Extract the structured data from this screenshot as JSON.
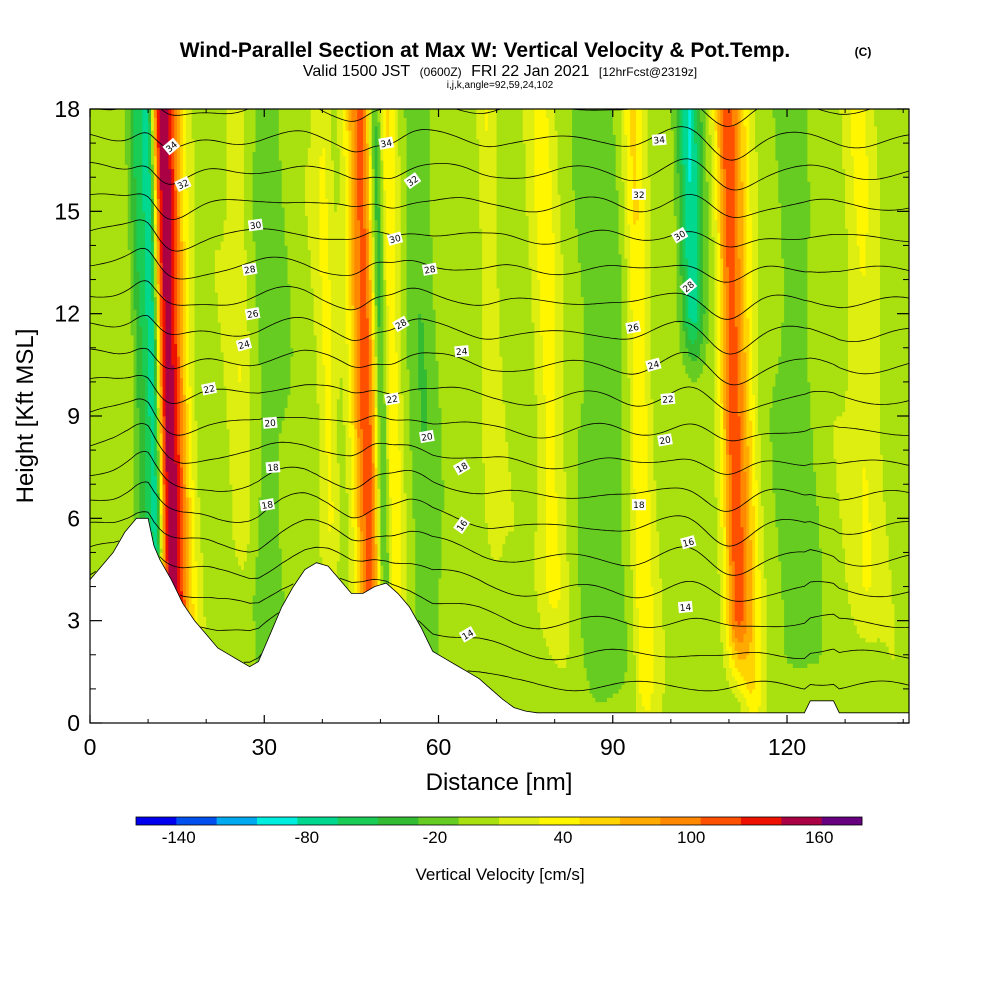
{
  "title": {
    "main": "Wind-Parallel Section at Max W: Vertical Velocity & Pot.Temp.",
    "copyright": "(C)",
    "valid_prefix": "Valid 1500 JST",
    "valid_utc": "(0600Z)",
    "valid_date": "FRI 22 Jan 2021",
    "forecast": "[12hrFcst@2319z]",
    "section_params": "i,j,k,angle=92,59,24,102"
  },
  "chart_data": {
    "type": "heatmap",
    "xlabel": "Distance [nm]",
    "ylabel": "Height [Kft MSL]",
    "xlim": [
      0,
      141
    ],
    "ylim": [
      0,
      18
    ],
    "x_ticks": [
      0,
      30,
      60,
      90,
      120
    ],
    "y_ticks": [
      0,
      3,
      6,
      9,
      12,
      15,
      18
    ],
    "x_minor_step": 10,
    "y_minor_step": 1,
    "x_tick_labels": [
      "0",
      "30",
      "60",
      "90",
      "120"
    ],
    "y_tick_labels": [
      "0",
      "3",
      "6",
      "9",
      "12",
      "15",
      "18"
    ],
    "field": "Vertical Velocity",
    "colorbar": {
      "title": "Vertical Velocity [cm/s]",
      "tick_values": [
        -140,
        -80,
        -20,
        40,
        100,
        160
      ],
      "tick_labels": [
        "-140",
        "-80",
        "-20",
        "40",
        "100",
        "160"
      ],
      "levels": [
        -160,
        -140,
        -120,
        -100,
        -80,
        -60,
        -40,
        -20,
        0,
        20,
        40,
        60,
        80,
        100,
        120,
        140,
        160,
        180
      ],
      "colors": [
        "#0000ee",
        "#0050f0",
        "#00aaf0",
        "#00eee0",
        "#00d890",
        "#19cc55",
        "#33bb33",
        "#66cc22",
        "#a8e010",
        "#ddee10",
        "#fff600",
        "#ffd400",
        "#ffaa00",
        "#ff8800",
        "#ff5000",
        "#ee1100",
        "#aa0044",
        "#66007f"
      ]
    },
    "terrain_kft": [
      [
        0,
        4.2
      ],
      [
        2,
        4.6
      ],
      [
        4,
        5.0
      ],
      [
        6,
        5.6
      ],
      [
        8,
        6.0
      ],
      [
        10,
        6.0
      ],
      [
        11,
        5.2
      ],
      [
        12,
        4.8
      ],
      [
        14,
        4.2
      ],
      [
        16,
        3.5
      ],
      [
        18,
        3.0
      ],
      [
        20,
        2.6
      ],
      [
        22,
        2.2
      ],
      [
        24,
        2.0
      ],
      [
        26,
        1.8
      ],
      [
        27.5,
        1.65
      ],
      [
        29,
        1.8
      ],
      [
        31,
        2.6
      ],
      [
        33,
        3.4
      ],
      [
        35,
        4.0
      ],
      [
        37,
        4.5
      ],
      [
        39,
        4.7
      ],
      [
        41,
        4.6
      ],
      [
        43,
        4.2
      ],
      [
        45,
        3.8
      ],
      [
        47,
        3.8
      ],
      [
        49,
        4.0
      ],
      [
        51,
        4.1
      ],
      [
        53,
        3.8
      ],
      [
        55,
        3.4
      ],
      [
        57,
        2.8
      ],
      [
        59,
        2.1
      ],
      [
        61,
        1.9
      ],
      [
        63,
        1.7
      ],
      [
        65,
        1.5
      ],
      [
        67,
        1.3
      ],
      [
        69,
        1.0
      ],
      [
        71,
        0.7
      ],
      [
        73,
        0.45
      ],
      [
        75,
        0.35
      ],
      [
        77,
        0.3
      ],
      [
        100,
        0.3
      ],
      [
        123,
        0.3
      ],
      [
        124,
        0.65
      ],
      [
        128,
        0.65
      ],
      [
        129,
        0.3
      ],
      [
        141,
        0.3
      ]
    ],
    "updraft_bands": [
      {
        "x": 12.5,
        "w": 3.0,
        "amp": 160,
        "zlo": 3.0
      },
      {
        "x": 46.5,
        "w": 2.5,
        "amp": 115,
        "zlo": 2.0
      },
      {
        "x": 51.0,
        "w": 1.6,
        "amp": 45,
        "zlo": 2.0
      },
      {
        "x": 109.5,
        "w": 2.0,
        "amp": 105,
        "zlo": 3.0
      },
      {
        "x": 112.0,
        "w": 2.0,
        "amp": 45,
        "zlo": 1.0
      },
      {
        "x": 93.5,
        "w": 1.8,
        "amp": 45,
        "zlo": 1.0
      },
      {
        "x": 78.0,
        "w": 2.5,
        "amp": 32,
        "zlo": 4.0
      },
      {
        "x": 25.0,
        "w": 1.8,
        "amp": 28,
        "zlo": 6.0
      },
      {
        "x": 40.0,
        "w": 1.5,
        "amp": 32,
        "zlo": 6.0
      },
      {
        "x": 132.0,
        "w": 2.5,
        "amp": 30,
        "zlo": 4.0
      },
      {
        "x": 68.0,
        "w": 1.5,
        "amp": 25,
        "zlo": 6.0
      }
    ],
    "downdraft_bands": [
      {
        "x": 10.0,
        "w": 1.2,
        "amp": 140,
        "zlo": 5.0
      },
      {
        "x": 8.0,
        "w": 1.5,
        "amp": 60,
        "zlo": 6.0
      },
      {
        "x": 49.0,
        "w": 1.2,
        "amp": 80,
        "zlo": 2.5
      },
      {
        "x": 103.0,
        "w": 2.0,
        "amp": 90,
        "zlo": 12.0
      },
      {
        "x": 56.0,
        "w": 2.5,
        "amp": 30,
        "zlo": 2.0
      },
      {
        "x": 30.0,
        "w": 3.0,
        "amp": 22,
        "zlo": 2.0
      },
      {
        "x": 87.0,
        "w": 4.0,
        "amp": 25,
        "zlo": 2.0
      },
      {
        "x": 120.0,
        "w": 3.5,
        "amp": 22,
        "zlo": 2.0
      }
    ],
    "theta_isentropes": {
      "levels": [
        11,
        12,
        13,
        14,
        15,
        16,
        17,
        18,
        19,
        20,
        21,
        22,
        23,
        24,
        25,
        26,
        27,
        28,
        29,
        30,
        31,
        32,
        33,
        34,
        35
      ],
      "labels": [
        {
          "text": "34",
          "x": 14.0,
          "y": 16.9,
          "angle": -40
        },
        {
          "text": "32",
          "x": 16.0,
          "y": 15.8,
          "angle": -25
        },
        {
          "text": "30",
          "x": 28.5,
          "y": 14.6,
          "angle": -8
        },
        {
          "text": "28",
          "x": 27.5,
          "y": 13.3,
          "angle": -10
        },
        {
          "text": "26",
          "x": 28.0,
          "y": 12.0,
          "angle": -10
        },
        {
          "text": "24",
          "x": 26.5,
          "y": 11.1,
          "angle": -15
        },
        {
          "text": "22",
          "x": 20.5,
          "y": 9.8,
          "angle": -12
        },
        {
          "text": "20",
          "x": 31.0,
          "y": 8.8,
          "angle": -5
        },
        {
          "text": "18",
          "x": 31.5,
          "y": 7.5,
          "angle": -5
        },
        {
          "text": "18",
          "x": 30.5,
          "y": 6.4,
          "angle": -10
        },
        {
          "text": "34",
          "x": 51.0,
          "y": 17.0,
          "angle": -10
        },
        {
          "text": "32",
          "x": 55.5,
          "y": 15.9,
          "angle": -35
        },
        {
          "text": "30",
          "x": 52.5,
          "y": 14.2,
          "angle": -15
        },
        {
          "text": "28",
          "x": 58.5,
          "y": 13.3,
          "angle": -10
        },
        {
          "text": "28",
          "x": 53.5,
          "y": 11.7,
          "angle": -30
        },
        {
          "text": "24",
          "x": 64.0,
          "y": 10.9,
          "angle": -5
        },
        {
          "text": "22",
          "x": 52.0,
          "y": 9.5,
          "angle": -10
        },
        {
          "text": "20",
          "x": 58.0,
          "y": 8.4,
          "angle": -10
        },
        {
          "text": "18",
          "x": 64.0,
          "y": 7.5,
          "angle": -30
        },
        {
          "text": "16",
          "x": 64.0,
          "y": 5.8,
          "angle": -55
        },
        {
          "text": "14",
          "x": 65.0,
          "y": 2.6,
          "angle": -30
        },
        {
          "text": "34",
          "x": 98.0,
          "y": 17.1,
          "angle": -5
        },
        {
          "text": "32",
          "x": 94.5,
          "y": 15.5,
          "angle": 0
        },
        {
          "text": "30",
          "x": 101.5,
          "y": 14.3,
          "angle": -30
        },
        {
          "text": "28",
          "x": 103.0,
          "y": 12.8,
          "angle": -40
        },
        {
          "text": "26",
          "x": 93.5,
          "y": 11.6,
          "angle": -10
        },
        {
          "text": "24",
          "x": 97.0,
          "y": 10.5,
          "angle": -15
        },
        {
          "text": "22",
          "x": 99.5,
          "y": 9.5,
          "angle": -5
        },
        {
          "text": "20",
          "x": 99.0,
          "y": 8.3,
          "angle": -10
        },
        {
          "text": "18",
          "x": 94.5,
          "y": 6.4,
          "angle": 0
        },
        {
          "text": "16",
          "x": 103.0,
          "y": 5.3,
          "angle": -15
        },
        {
          "text": "14",
          "x": 102.5,
          "y": 3.4,
          "angle": -5
        }
      ]
    }
  }
}
